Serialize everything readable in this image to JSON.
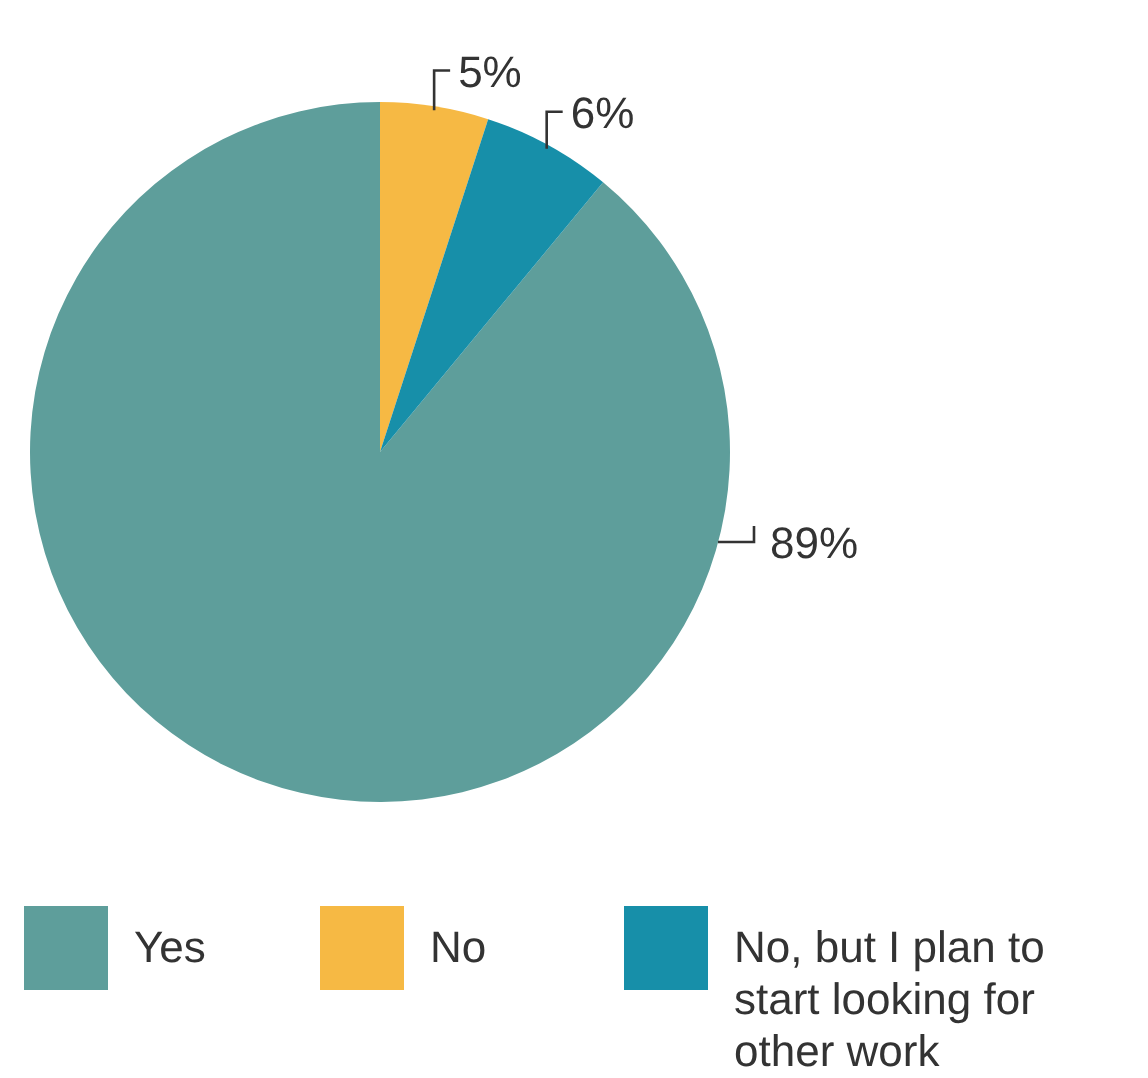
{
  "chart_data": {
    "type": "pie",
    "categories": [
      "Yes",
      "No",
      "No, but I plan to start looking for other work"
    ],
    "values": [
      89,
      5,
      6
    ],
    "value_labels": [
      "89%",
      "5%",
      "6%"
    ],
    "colors": [
      "#5e9e9b",
      "#f6b944",
      "#178fa9"
    ],
    "legend": "bottom"
  }
}
